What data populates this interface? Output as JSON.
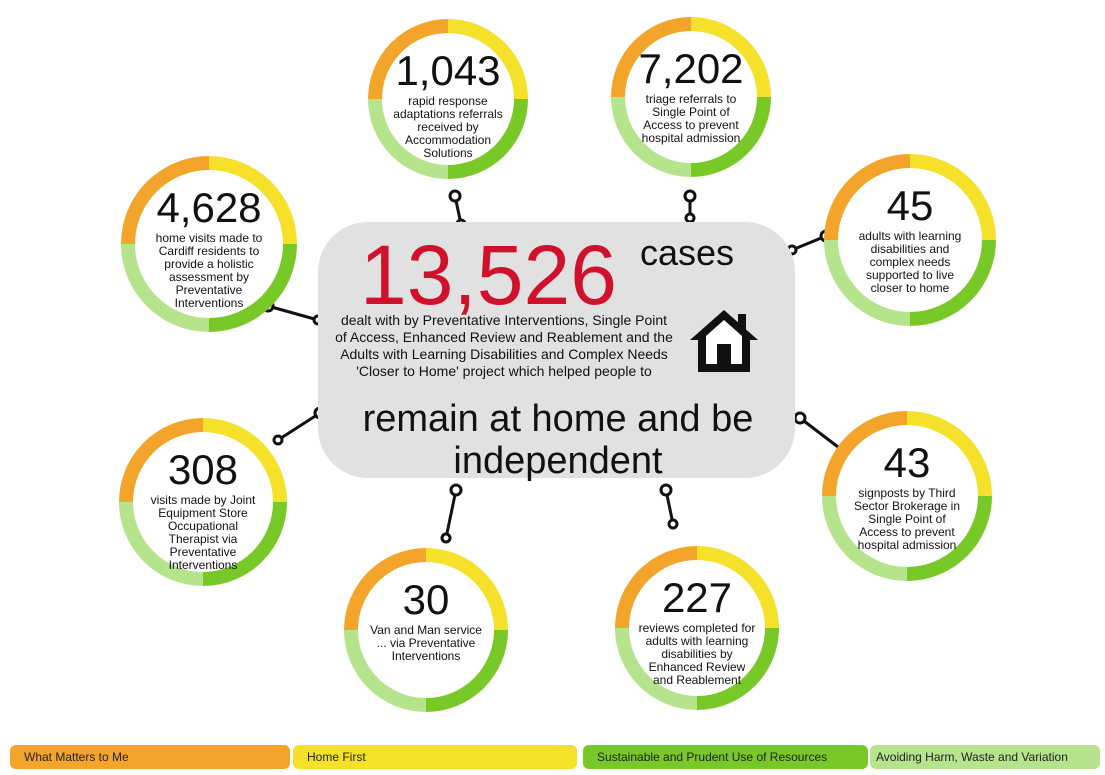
{
  "center": {
    "number": "13,526",
    "unit": "cases",
    "description": "dealt with by Preventative Interventions, Single Point of Access, Enhanced Review and Reablement and the Adults with Learning Disabilities and Complex Needs 'Closer to Home' project which helped people to",
    "tagline": "remain at home and be independent"
  },
  "stats": [
    {
      "number": "4,628",
      "label": "home visits made to Cardiff residents to provide a holistic assessment by Preventative Interventions"
    },
    {
      "number": "1,043",
      "label": "rapid response adaptations referrals received by Accommodation Solutions"
    },
    {
      "number": "7,202",
      "label": "triage referrals to Single Point of Access to prevent hospital admission"
    },
    {
      "number": "45",
      "label": "adults with learning disabilities and complex needs supported to live closer to home"
    },
    {
      "number": "308",
      "label": "visits made by Joint Equipment Store Occupational Therapist via Preventative Interventions"
    },
    {
      "number": "30",
      "label": "Van and Man service ... via Preventative Interventions"
    },
    {
      "number": "227",
      "label": "reviews completed for adults with learning disabilities by Enhanced Review and Reablement"
    },
    {
      "number": "43",
      "label": "signposts by Third Sector Brokerage in Single Point of Access to prevent hospital admission"
    }
  ],
  "legend": [
    "What Matters to Me",
    "Home First",
    "Sustainable and Prudent Use of Resources",
    "Avoiding Harm, Waste and Variation"
  ]
}
